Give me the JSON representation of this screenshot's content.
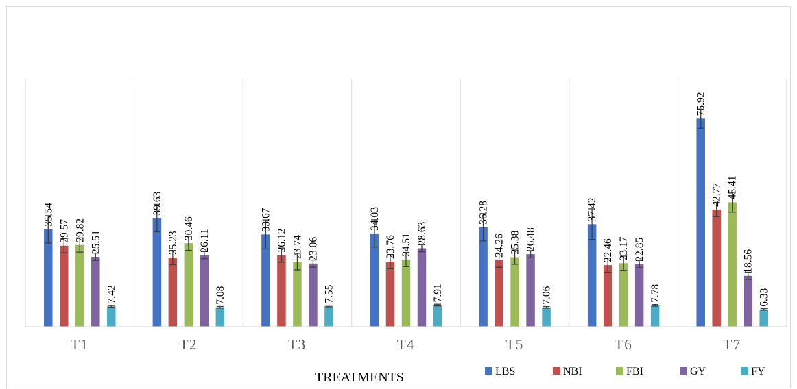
{
  "chart_data": {
    "type": "bar",
    "title": "",
    "xlabel": "TREATMENTS",
    "ylabel": "",
    "ylim": [
      0,
      100
    ],
    "grid": "vertical category separators",
    "legend_position": "bottom-right",
    "error_bars": true,
    "categories": [
      "T1",
      "T2",
      "T3",
      "T4",
      "T5",
      "T6",
      "T7"
    ],
    "series": [
      {
        "name": "LBS",
        "color": "#4472C4",
        "values": [
          35.54,
          39.63,
          33.67,
          34.03,
          36.28,
          37.42,
          75.92
        ],
        "errors": [
          5.0,
          5.0,
          5.3,
          5.0,
          5.0,
          5.6,
          3.5
        ]
      },
      {
        "name": "NBI",
        "color": "#C0504D",
        "values": [
          29.57,
          25.23,
          26.12,
          23.76,
          24.26,
          22.46,
          42.77
        ],
        "errors": [
          2.6,
          2.6,
          2.6,
          2.6,
          2.6,
          2.6,
          2.6
        ]
      },
      {
        "name": "FBI",
        "color": "#9BBB59",
        "values": [
          29.82,
          30.46,
          23.74,
          24.51,
          25.38,
          23.17,
          45.41
        ],
        "errors": [
          2.6,
          2.6,
          3.0,
          2.6,
          2.6,
          2.6,
          3.6
        ]
      },
      {
        "name": "GY",
        "color": "#8064A2",
        "values": [
          25.51,
          26.11,
          23.06,
          28.63,
          26.48,
          22.85,
          18.56
        ],
        "errors": [
          1.3,
          1.3,
          1.3,
          1.3,
          1.3,
          1.3,
          1.3
        ]
      },
      {
        "name": "FY",
        "color": "#4BACC6",
        "values": [
          7.42,
          7.08,
          7.55,
          7.91,
          7.06,
          7.78,
          6.33
        ],
        "errors": [
          0.3,
          0.3,
          0.3,
          0.3,
          0.3,
          0.3,
          0.3
        ]
      }
    ]
  }
}
